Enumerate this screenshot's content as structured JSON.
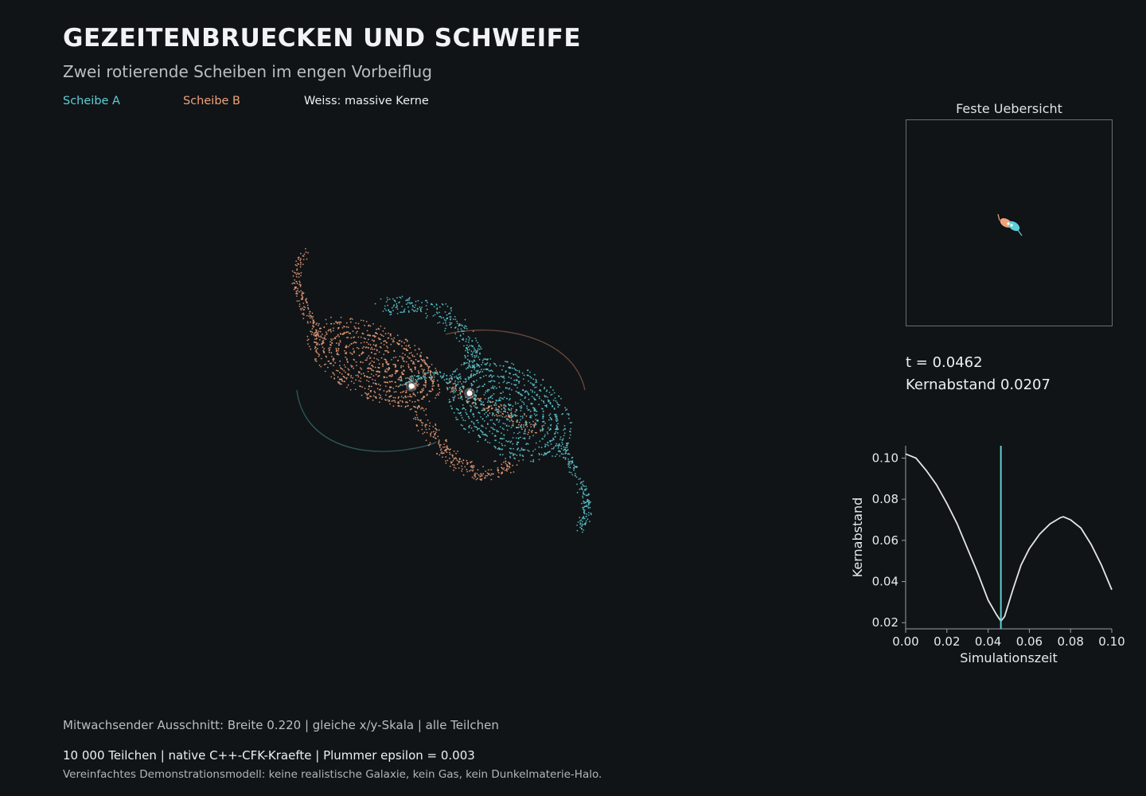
{
  "header": {
    "title": "GEZEITENBRUECKEN UND SCHWEIFE",
    "subtitle": "Zwei rotierende Scheiben im engen Vorbeiflug"
  },
  "legend": {
    "disk_a": "Scheibe A",
    "disk_b": "Scheibe B",
    "cores": "Weiss: massive Kerne"
  },
  "colors": {
    "background": "#101417",
    "disk_a": "#5fcfd6",
    "disk_b": "#f2a27a",
    "core": "#ffffff",
    "curve": "#e6e6e6",
    "marker": "#5fcfd6",
    "axis": "#9aa0a6"
  },
  "overview": {
    "title": "Feste Uebersicht"
  },
  "readouts": {
    "time": "t = 0.0462",
    "distance": "Kernabstand 0.0207"
  },
  "footer": {
    "view_info": "Mitwachsender Ausschnitt: Breite 0.220 | gleiche x/y-Skala | alle Teilchen",
    "sim_info": "10 000 Teilchen | native C++-CFK-Kraefte | Plummer epsilon = 0.003",
    "disclaimer": "Vereinfachtes Demonstrationsmodell: keine realistische Galaxie, kein Gas, kein Dunkelmaterie-Halo."
  },
  "chart_data": {
    "type": "line",
    "title": "",
    "xlabel": "Simulationszeit",
    "ylabel": "Kernabstand",
    "xlim": [
      0.0,
      0.1
    ],
    "ylim": [
      0.017,
      0.106
    ],
    "xticks": [
      "0.00",
      "0.02",
      "0.04",
      "0.06",
      "0.08",
      "0.10"
    ],
    "yticks": [
      "0.02",
      "0.04",
      "0.06",
      "0.08",
      "0.10"
    ],
    "grid": false,
    "series": [
      {
        "x": [
          0.0,
          0.005,
          0.01,
          0.015,
          0.02,
          0.025,
          0.03,
          0.035,
          0.04,
          0.044,
          0.0462,
          0.048,
          0.052,
          0.056,
          0.06,
          0.065,
          0.07,
          0.075,
          0.0765,
          0.08,
          0.085,
          0.09,
          0.095,
          0.1
        ],
        "y": [
          0.102,
          0.1,
          0.094,
          0.087,
          0.078,
          0.068,
          0.056,
          0.044,
          0.031,
          0.024,
          0.0207,
          0.023,
          0.036,
          0.048,
          0.056,
          0.063,
          0.068,
          0.071,
          0.0715,
          0.07,
          0.066,
          0.058,
          0.048,
          0.036
        ]
      }
    ],
    "marker_x": 0.0462
  }
}
